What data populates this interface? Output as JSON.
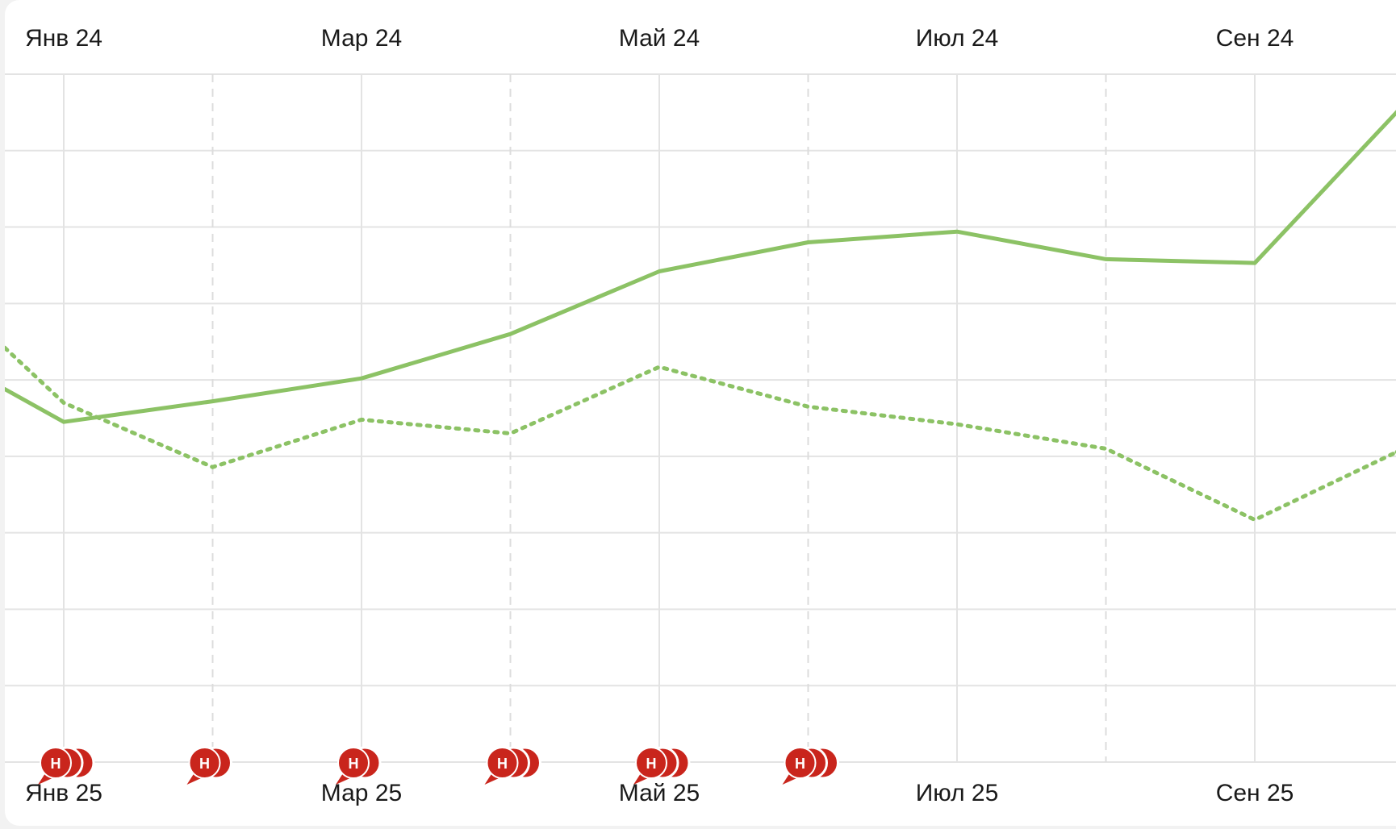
{
  "chart_data": {
    "type": "line",
    "x_top": [
      "Янв 24",
      "",
      "Мар 24",
      "",
      "Май 24",
      "",
      "Июл 24",
      "",
      "Сен 24",
      ""
    ],
    "x_bottom": [
      "Янв 25",
      "",
      "Мар 25",
      "",
      "Май 25",
      "",
      "Июл 25",
      "",
      "Сен 25",
      ""
    ],
    "top_tick_labels": [
      "Янв 24",
      "Мар 24",
      "Май 24",
      "Июл 24",
      "Сен 24"
    ],
    "bottom_tick_labels": [
      "Янв 25",
      "Мар 25",
      "Май 25",
      "Июл 25",
      "Сен 25"
    ],
    "y_range": [
      0,
      9
    ],
    "y_gridlines": 10,
    "grid": true,
    "series": [
      {
        "style": "solid",
        "color": "#8cc265",
        "values": [
          4.45,
          4.72,
          5.02,
          5.6,
          6.42,
          6.8,
          6.94,
          6.58,
          6.53,
          8.6
        ],
        "leading_value": 4.88,
        "axis": "bottom"
      },
      {
        "style": "dotted",
        "color": "#8cc265",
        "values": [
          4.7,
          3.86,
          4.48,
          4.3,
          5.17,
          4.65,
          4.42,
          4.1,
          3.17,
          4.1
        ],
        "leading_value": 5.42,
        "axis": "top"
      }
    ],
    "annotations": {
      "marker_letter": "Н",
      "marker_color": "#c9251c",
      "markers": [
        {
          "x_index": 0,
          "count": 3
        },
        {
          "x_index": 1,
          "count": 2
        },
        {
          "x_index": 2,
          "count": 2
        },
        {
          "x_index": 3,
          "count": 3
        },
        {
          "x_index": 4,
          "count": 3
        },
        {
          "x_index": 5,
          "count": 3
        }
      ]
    }
  }
}
